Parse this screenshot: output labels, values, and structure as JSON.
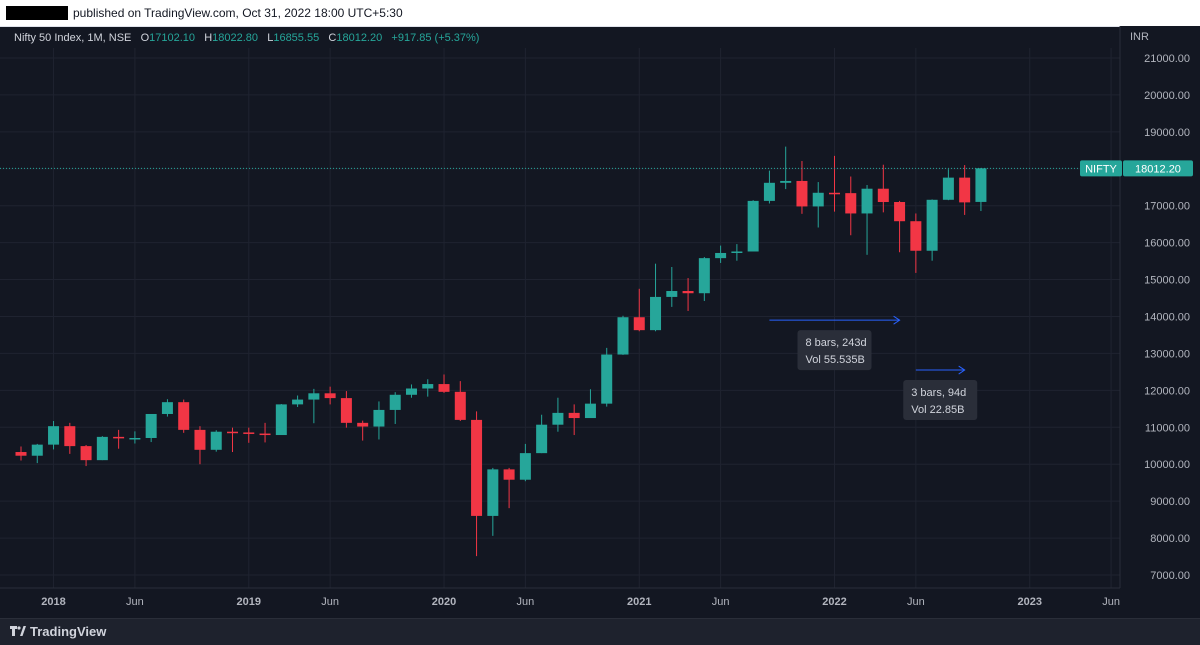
{
  "header": {
    "published_text": "published on TradingView.com, Oct 31, 2022 18:00 UTC+5:30"
  },
  "legend": {
    "symbol": "Nifty 50 Index, 1M, NSE",
    "o_label": "O",
    "o_value": "17102.10",
    "h_label": "H",
    "h_value": "18022.80",
    "l_label": "L",
    "l_value": "16855.55",
    "c_label": "C",
    "c_value": "18012.20",
    "change": "+917.85 (+5.37%)"
  },
  "footer": {
    "brand": "TradingView"
  },
  "chart_data": {
    "type": "candlestick",
    "currency_label": "INR",
    "y_ticks": [
      7000,
      8000,
      9000,
      10000,
      11000,
      12000,
      13000,
      14000,
      15000,
      16000,
      17000,
      18000,
      19000,
      20000,
      21000
    ],
    "y_tick_labels": [
      "7000.00",
      "8000.00",
      "9000.00",
      "10000.00",
      "11000.00",
      "12000.00",
      "13000.00",
      "14000.00",
      "15000.00",
      "16000.00",
      "17000.00",
      "18000.00",
      "19000.00",
      "20000.00",
      "21000.00"
    ],
    "x_labels": [
      {
        "label": "2018",
        "date": "2018-01",
        "bold": true
      },
      {
        "label": "Jun",
        "date": "2018-06",
        "bold": false
      },
      {
        "label": "2019",
        "date": "2019-01",
        "bold": true
      },
      {
        "label": "Jun",
        "date": "2019-06",
        "bold": false
      },
      {
        "label": "2020",
        "date": "2020-01",
        "bold": true
      },
      {
        "label": "Jun",
        "date": "2020-06",
        "bold": false
      },
      {
        "label": "2021",
        "date": "2021-01",
        "bold": true
      },
      {
        "label": "Jun",
        "date": "2021-06",
        "bold": false
      },
      {
        "label": "2022",
        "date": "2022-01",
        "bold": true
      },
      {
        "label": "Jun",
        "date": "2022-06",
        "bold": false
      },
      {
        "label": "2023",
        "date": "2023-01",
        "bold": true
      },
      {
        "label": "Jun",
        "date": "2023-06",
        "bold": false
      }
    ],
    "current_price": {
      "symbol": "NIFTY",
      "value": "18012.20",
      "price": 18012.2
    },
    "colors": {
      "up": "#26a69a",
      "down": "#f23645",
      "background": "#131722",
      "grid": "#1f2330",
      "text": "#b2b5be",
      "measure": "#2962ff"
    },
    "candles": [
      {
        "date": "2017-11",
        "o": 10330,
        "h": 10480,
        "l": 10100,
        "c": 10230
      },
      {
        "date": "2017-12",
        "o": 10230,
        "h": 10550,
        "l": 10030,
        "c": 10530
      },
      {
        "date": "2018-01",
        "o": 10530,
        "h": 11170,
        "l": 10400,
        "c": 11030
      },
      {
        "date": "2018-02",
        "o": 11030,
        "h": 11120,
        "l": 10280,
        "c": 10490
      },
      {
        "date": "2018-03",
        "o": 10490,
        "h": 10520,
        "l": 9950,
        "c": 10110
      },
      {
        "date": "2018-04",
        "o": 10110,
        "h": 10760,
        "l": 10110,
        "c": 10740
      },
      {
        "date": "2018-05",
        "o": 10740,
        "h": 10930,
        "l": 10420,
        "c": 10710
      },
      {
        "date": "2018-06",
        "o": 10710,
        "h": 10890,
        "l": 10560,
        "c": 10710
      },
      {
        "date": "2018-07",
        "o": 10710,
        "h": 11360,
        "l": 10600,
        "c": 11360
      },
      {
        "date": "2018-08",
        "o": 11360,
        "h": 11760,
        "l": 11290,
        "c": 11680
      },
      {
        "date": "2018-09",
        "o": 11680,
        "h": 11750,
        "l": 10850,
        "c": 10930
      },
      {
        "date": "2018-10",
        "o": 10930,
        "h": 11030,
        "l": 10000,
        "c": 10390
      },
      {
        "date": "2018-11",
        "o": 10390,
        "h": 10920,
        "l": 10340,
        "c": 10880
      },
      {
        "date": "2018-12",
        "o": 10880,
        "h": 10990,
        "l": 10330,
        "c": 10860
      },
      {
        "date": "2019-01",
        "o": 10860,
        "h": 10990,
        "l": 10580,
        "c": 10830
      },
      {
        "date": "2019-02",
        "o": 10830,
        "h": 11120,
        "l": 10590,
        "c": 10790
      },
      {
        "date": "2019-03",
        "o": 10790,
        "h": 11630,
        "l": 10810,
        "c": 11620
      },
      {
        "date": "2019-04",
        "o": 11620,
        "h": 11860,
        "l": 11550,
        "c": 11750
      },
      {
        "date": "2019-05",
        "o": 11750,
        "h": 12040,
        "l": 11110,
        "c": 11920
      },
      {
        "date": "2019-06",
        "o": 11920,
        "h": 12100,
        "l": 11620,
        "c": 11790
      },
      {
        "date": "2019-07",
        "o": 11790,
        "h": 11980,
        "l": 10990,
        "c": 11120
      },
      {
        "date": "2019-08",
        "o": 11120,
        "h": 11180,
        "l": 10640,
        "c": 11020
      },
      {
        "date": "2019-09",
        "o": 11020,
        "h": 11700,
        "l": 10670,
        "c": 11470
      },
      {
        "date": "2019-10",
        "o": 11470,
        "h": 11950,
        "l": 11090,
        "c": 11880
      },
      {
        "date": "2019-11",
        "o": 11880,
        "h": 12160,
        "l": 11800,
        "c": 12050
      },
      {
        "date": "2019-12",
        "o": 12050,
        "h": 12300,
        "l": 11830,
        "c": 12170
      },
      {
        "date": "2020-01",
        "o": 12170,
        "h": 12430,
        "l": 11930,
        "c": 11960
      },
      {
        "date": "2020-02",
        "o": 11960,
        "h": 12250,
        "l": 11170,
        "c": 11200
      },
      {
        "date": "2020-03",
        "o": 11200,
        "h": 11430,
        "l": 7510,
        "c": 8600
      },
      {
        "date": "2020-04",
        "o": 8600,
        "h": 9900,
        "l": 8060,
        "c": 9860
      },
      {
        "date": "2020-05",
        "o": 9860,
        "h": 9900,
        "l": 8810,
        "c": 9580
      },
      {
        "date": "2020-06",
        "o": 9580,
        "h": 10550,
        "l": 9540,
        "c": 10300
      },
      {
        "date": "2020-07",
        "o": 10300,
        "h": 11340,
        "l": 10300,
        "c": 11070
      },
      {
        "date": "2020-08",
        "o": 11070,
        "h": 11800,
        "l": 10880,
        "c": 11390
      },
      {
        "date": "2020-09",
        "o": 11390,
        "h": 11620,
        "l": 10790,
        "c": 11250
      },
      {
        "date": "2020-10",
        "o": 11250,
        "h": 12030,
        "l": 11350,
        "c": 11640
      },
      {
        "date": "2020-11",
        "o": 11640,
        "h": 13150,
        "l": 11560,
        "c": 12970
      },
      {
        "date": "2020-12",
        "o": 12970,
        "h": 14020,
        "l": 12960,
        "c": 13980
      },
      {
        "date": "2021-01",
        "o": 13980,
        "h": 14750,
        "l": 13600,
        "c": 13630
      },
      {
        "date": "2021-02",
        "o": 13630,
        "h": 15430,
        "l": 13600,
        "c": 14530
      },
      {
        "date": "2021-03",
        "o": 14530,
        "h": 15340,
        "l": 14260,
        "c": 14690
      },
      {
        "date": "2021-04",
        "o": 14690,
        "h": 15040,
        "l": 14150,
        "c": 14630
      },
      {
        "date": "2021-05",
        "o": 14630,
        "h": 15610,
        "l": 14420,
        "c": 15580
      },
      {
        "date": "2021-06",
        "o": 15580,
        "h": 15920,
        "l": 15450,
        "c": 15720
      },
      {
        "date": "2021-07",
        "o": 15720,
        "h": 15960,
        "l": 15510,
        "c": 15760
      },
      {
        "date": "2021-08",
        "o": 15760,
        "h": 17150,
        "l": 15830,
        "c": 17130
      },
      {
        "date": "2021-09",
        "o": 17130,
        "h": 17950,
        "l": 17060,
        "c": 17620
      },
      {
        "date": "2021-10",
        "o": 17620,
        "h": 18600,
        "l": 17450,
        "c": 17670
      },
      {
        "date": "2021-11",
        "o": 17670,
        "h": 18210,
        "l": 16780,
        "c": 16980
      },
      {
        "date": "2021-12",
        "o": 16980,
        "h": 17640,
        "l": 16410,
        "c": 17350
      },
      {
        "date": "2022-01",
        "o": 17350,
        "h": 18350,
        "l": 16840,
        "c": 17340
      },
      {
        "date": "2022-02",
        "o": 17340,
        "h": 17790,
        "l": 16200,
        "c": 16790
      },
      {
        "date": "2022-03",
        "o": 16790,
        "h": 17560,
        "l": 15670,
        "c": 17460
      },
      {
        "date": "2022-04",
        "o": 17460,
        "h": 18110,
        "l": 16820,
        "c": 17100
      },
      {
        "date": "2022-05",
        "o": 17100,
        "h": 17130,
        "l": 15740,
        "c": 16580
      },
      {
        "date": "2022-06",
        "o": 16580,
        "h": 16790,
        "l": 15180,
        "c": 15780
      },
      {
        "date": "2022-07",
        "o": 15780,
        "h": 17170,
        "l": 15510,
        "c": 17160
      },
      {
        "date": "2022-08",
        "o": 17160,
        "h": 17990,
        "l": 17150,
        "c": 17760
      },
      {
        "date": "2022-09",
        "o": 17760,
        "h": 18100,
        "l": 16750,
        "c": 17090
      },
      {
        "date": "2022-10",
        "o": 17102.1,
        "h": 18022.8,
        "l": 16855.55,
        "c": 18012.2
      }
    ],
    "measurements": [
      {
        "bars_text": "8 bars, 243d",
        "vol_text": "Vol 55.535B",
        "from": "2021-09",
        "to": "2022-05",
        "price": 13900
      },
      {
        "bars_text": "3 bars, 94d",
        "vol_text": "Vol 22.85B",
        "from": "2022-06",
        "to": "2022-09",
        "price": 12550
      }
    ]
  }
}
